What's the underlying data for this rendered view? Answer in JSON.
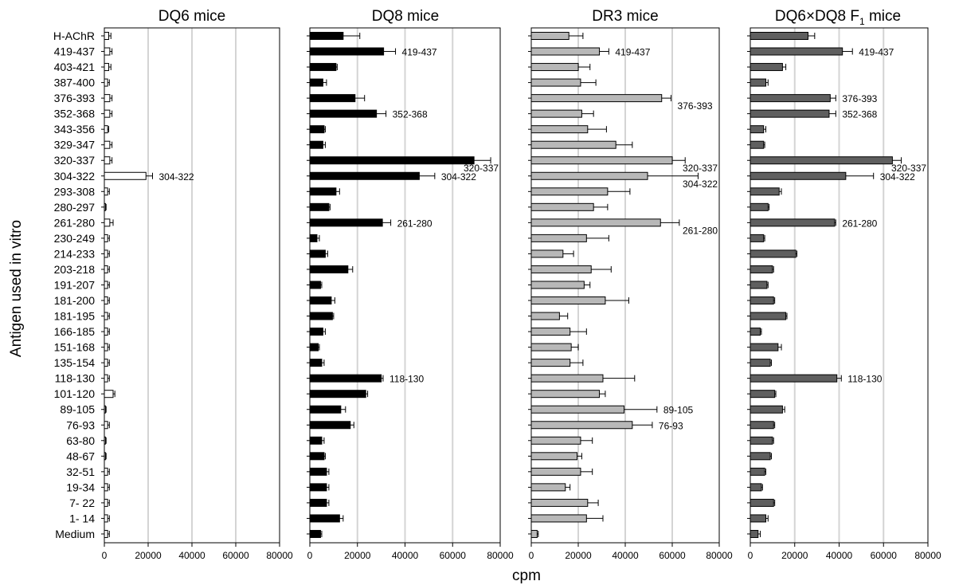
{
  "figure": {
    "ylabel": "Antigen used in vitro",
    "xlabel": "cpm"
  },
  "chart_data": [
    {
      "type": "bar",
      "orientation": "horizontal",
      "title": "DQ6 mice",
      "bar_color": "#ffffff",
      "xlim": [
        0,
        80000
      ],
      "xticks": [
        "0",
        "20000",
        "40000",
        "60000",
        "80000"
      ],
      "grid": true,
      "categories": [
        "H-AChR",
        "419-437",
        "403-421",
        "387-400",
        "376-393",
        "352-368",
        "343-356",
        "329-347",
        "320-337",
        "304-322",
        "293-308",
        "280-297",
        "261-280",
        "230-249",
        "214-233",
        "203-218",
        "191-207",
        "181-200",
        "181-195",
        "166-185",
        "151-168",
        "135-154",
        "118-130",
        "101-120",
        "89-105",
        "76-93",
        "63-80",
        "48-67",
        "32-51",
        "19-34",
        "7- 22",
        "1- 14",
        "Medium"
      ],
      "values": [
        2000,
        2500,
        2000,
        1500,
        2500,
        2500,
        1500,
        2500,
        2500,
        19000,
        1500,
        500,
        2500,
        1500,
        1500,
        1500,
        1500,
        1500,
        1500,
        1500,
        1500,
        1500,
        1500,
        4000,
        500,
        1500,
        500,
        500,
        1500,
        1500,
        1500,
        1500,
        1500
      ],
      "errors": [
        1000,
        1000,
        1000,
        800,
        1000,
        1000,
        500,
        1000,
        1000,
        3000,
        800,
        300,
        1500,
        800,
        800,
        800,
        800,
        800,
        800,
        800,
        800,
        800,
        800,
        800,
        300,
        800,
        300,
        300,
        800,
        800,
        800,
        800,
        800
      ],
      "annotations": [
        {
          "category": "304-322",
          "label": "304-322"
        }
      ]
    },
    {
      "type": "bar",
      "orientation": "horizontal",
      "title": "DQ8 mice",
      "bar_color": "#000000",
      "xlim": [
        0,
        80000
      ],
      "xticks": [
        "0",
        "20000",
        "40000",
        "60000",
        "80000"
      ],
      "grid": true,
      "categories": [
        "H-AChR",
        "419-437",
        "403-421",
        "387-400",
        "376-393",
        "352-368",
        "343-356",
        "329-347",
        "320-337",
        "304-322",
        "293-308",
        "280-297",
        "261-280",
        "230-249",
        "214-233",
        "203-218",
        "191-207",
        "181-200",
        "181-195",
        "166-185",
        "151-168",
        "135-154",
        "118-130",
        "101-120",
        "89-105",
        "76-93",
        "63-80",
        "48-67",
        "32-51",
        "19-34",
        "7- 22",
        "1- 14",
        "Medium"
      ],
      "values": [
        14000,
        31000,
        11000,
        5500,
        19000,
        28000,
        6000,
        5500,
        69000,
        46000,
        11000,
        8000,
        30500,
        3000,
        6500,
        16000,
        4500,
        9000,
        9500,
        5500,
        3500,
        5000,
        30000,
        23500,
        13000,
        17000,
        5000,
        6000,
        7000,
        7000,
        7000,
        12500,
        4500
      ],
      "errors": [
        7000,
        5000,
        500,
        1500,
        4000,
        4000,
        500,
        1000,
        7000,
        6500,
        1500,
        500,
        3500,
        1000,
        1000,
        2000,
        500,
        1500,
        500,
        1000,
        500,
        1000,
        800,
        800,
        2000,
        1500,
        1000,
        500,
        1000,
        1000,
        1000,
        1500,
        500
      ],
      "annotations": [
        {
          "category": "419-437",
          "label": "419-437"
        },
        {
          "category": "352-368",
          "label": "352-368"
        },
        {
          "category": "320-337",
          "label": "320-337"
        },
        {
          "category": "304-322",
          "label": "304-322"
        },
        {
          "category": "261-280",
          "label": "261-280"
        },
        {
          "category": "118-130",
          "label": "118-130"
        }
      ]
    },
    {
      "type": "bar",
      "orientation": "horizontal",
      "title": "DR3 mice",
      "bar_color": "#b8b8b8",
      "xlim": [
        0,
        80000
      ],
      "xticks": [
        "0",
        "20000",
        "40000",
        "60000",
        "80000"
      ],
      "grid": true,
      "categories": [
        "H-AChR",
        "419-437",
        "403-421",
        "387-400",
        "376-393",
        "352-368",
        "343-356",
        "329-347",
        "320-337",
        "304-322",
        "293-308",
        "280-297",
        "261-280",
        "230-249",
        "214-233",
        "203-218",
        "191-207",
        "181-200",
        "181-195",
        "166-185",
        "151-168",
        "135-154",
        "118-130",
        "101-120",
        "89-105",
        "76-93",
        "63-80",
        "48-67",
        "32-51",
        "19-34",
        "7- 22",
        "1- 14",
        "Medium"
      ],
      "values": [
        16000,
        29000,
        20000,
        21000,
        55500,
        21500,
        24000,
        36000,
        60000,
        49500,
        32500,
        26500,
        55000,
        23500,
        13500,
        25500,
        22500,
        31500,
        12000,
        16500,
        17000,
        16500,
        30500,
        29000,
        39500,
        43000,
        21000,
        19500,
        21000,
        14500,
        24000,
        23500,
        2500
      ],
      "errors": [
        6000,
        4000,
        5000,
        6500,
        4000,
        5000,
        8000,
        7000,
        5500,
        21500,
        9500,
        6000,
        8000,
        9500,
        4500,
        8500,
        2500,
        10000,
        3500,
        7000,
        3000,
        5500,
        13500,
        2500,
        14000,
        8500,
        5000,
        2000,
        5000,
        2000,
        4500,
        7000,
        500
      ],
      "annotations": [
        {
          "category": "419-437",
          "label": "419-437"
        },
        {
          "category": "376-393",
          "label": "376-393"
        },
        {
          "category": "320-337",
          "label": "320-337"
        },
        {
          "category": "304-322",
          "label": "304-322"
        },
        {
          "category": "261-280",
          "label": "261-280"
        },
        {
          "category": "89-105",
          "label": "89-105"
        },
        {
          "category": "76-93",
          "label": "76-93"
        }
      ]
    },
    {
      "type": "bar",
      "orientation": "horizontal",
      "title": "DQ6×DQ8 F",
      "title_subscript": "1",
      "title_suffix": " mice",
      "bar_color": "#5f5f5f",
      "xlim": [
        0,
        80000
      ],
      "xticks": [
        "0",
        "20000",
        "40000",
        "60000",
        "80000"
      ],
      "grid": true,
      "categories": [
        "H-AChR",
        "419-437",
        "403-421",
        "387-400",
        "376-393",
        "352-368",
        "343-356",
        "329-347",
        "320-337",
        "304-322",
        "293-308",
        "280-297",
        "261-280",
        "230-249",
        "214-233",
        "203-218",
        "191-207",
        "181-200",
        "181-195",
        "166-185",
        "151-168",
        "135-154",
        "118-130",
        "101-120",
        "89-105",
        "76-93",
        "63-80",
        "48-67",
        "32-51",
        "19-34",
        "7- 22",
        "1- 14",
        "Medium"
      ],
      "values": [
        26000,
        41500,
        14500,
        7000,
        36000,
        35500,
        6000,
        6000,
        64000,
        43000,
        13000,
        8000,
        38000,
        6000,
        20500,
        10000,
        7500,
        10500,
        16000,
        4500,
        12500,
        9000,
        39000,
        11000,
        14500,
        10500,
        10000,
        9000,
        6500,
        5000,
        10500,
        7000,
        3500
      ],
      "errors": [
        3000,
        4500,
        1500,
        1000,
        2500,
        3000,
        1000,
        500,
        4000,
        12500,
        1000,
        500,
        500,
        500,
        500,
        500,
        500,
        500,
        500,
        500,
        1500,
        500,
        2000,
        500,
        1000,
        500,
        500,
        500,
        500,
        500,
        500,
        1000,
        1000
      ],
      "annotations": [
        {
          "category": "419-437",
          "label": "419-437"
        },
        {
          "category": "376-393",
          "label": "376-393"
        },
        {
          "category": "352-368",
          "label": "352-368"
        },
        {
          "category": "320-337",
          "label": "320-337"
        },
        {
          "category": "304-322",
          "label": "304-322"
        },
        {
          "category": "261-280",
          "label": "261-280"
        },
        {
          "category": "118-130",
          "label": "118-130"
        }
      ]
    }
  ]
}
